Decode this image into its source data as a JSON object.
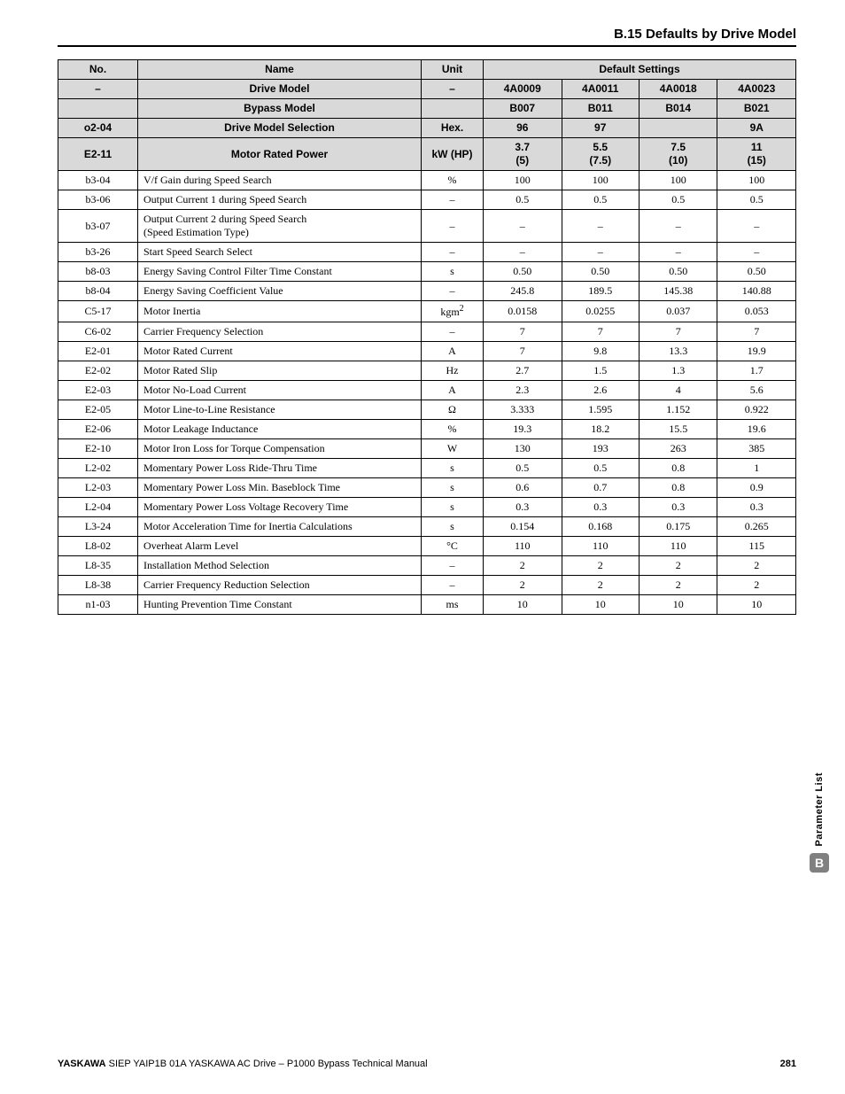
{
  "header": {
    "section_title": "B.15 Defaults by Drive Model"
  },
  "table": {
    "head": {
      "no": "No.",
      "name": "Name",
      "unit": "Unit",
      "defaults": "Default Settings",
      "dash": "–",
      "drive_model": "Drive Model",
      "bypass_model": "Bypass Model",
      "models": [
        "4A0009",
        "4A0011",
        "4A0018",
        "4A0023"
      ],
      "bypass": [
        "B007",
        "B011",
        "B014",
        "B021"
      ],
      "o2_04_no": "o2-04",
      "o2_04_name": "Drive Model Selection",
      "o2_04_unit": "Hex.",
      "o2_04_vals": [
        "96",
        "97",
        "",
        "9A"
      ],
      "e2_11_no": "E2-11",
      "e2_11_name": "Motor Rated Power",
      "e2_11_unit": "kW (HP)",
      "e2_11_vals_top": [
        "3.7",
        "5.5",
        "7.5",
        "11"
      ],
      "e2_11_vals_bot": [
        "(5)",
        "(7.5)",
        "(10)",
        "(15)"
      ]
    },
    "rows": [
      {
        "no": "b3-04",
        "name": "V/f Gain during Speed Search",
        "unit": "%",
        "v": [
          "100",
          "100",
          "100",
          "100"
        ]
      },
      {
        "no": "b3-06",
        "name": "Output Current 1 during Speed Search",
        "unit": "–",
        "v": [
          "0.5",
          "0.5",
          "0.5",
          "0.5"
        ]
      },
      {
        "no": "b3-07",
        "name": "Output Current 2 during Speed Search\n(Speed Estimation Type)",
        "unit": "–",
        "v": [
          "–",
          "–",
          "–",
          "–"
        ]
      },
      {
        "no": "b3-26",
        "name": "Start Speed Search Select",
        "unit": "–",
        "v": [
          "–",
          "–",
          "–",
          "–"
        ]
      },
      {
        "no": "b8-03",
        "name": "Energy Saving Control Filter Time Constant",
        "unit": "s",
        "v": [
          "0.50",
          "0.50",
          "0.50",
          "0.50"
        ]
      },
      {
        "no": "b8-04",
        "name": "Energy Saving Coefficient Value",
        "unit": "–",
        "v": [
          "245.8",
          "189.5",
          "145.38",
          "140.88"
        ]
      },
      {
        "no": "C5-17",
        "name": "Motor Inertia",
        "unit": "kgm²",
        "v": [
          "0.0158",
          "0.0255",
          "0.037",
          "0.053"
        ]
      },
      {
        "no": "C6-02",
        "name": "Carrier Frequency Selection",
        "unit": "–",
        "v": [
          "7",
          "7",
          "7",
          "7"
        ]
      },
      {
        "no": "E2-01",
        "name": "Motor Rated Current",
        "unit": "A",
        "v": [
          "7",
          "9.8",
          "13.3",
          "19.9"
        ]
      },
      {
        "no": "E2-02",
        "name": "Motor Rated Slip",
        "unit": "Hz",
        "v": [
          "2.7",
          "1.5",
          "1.3",
          "1.7"
        ]
      },
      {
        "no": "E2-03",
        "name": "Motor No-Load Current",
        "unit": "A",
        "v": [
          "2.3",
          "2.6",
          "4",
          "5.6"
        ]
      },
      {
        "no": "E2-05",
        "name": "Motor Line-to-Line Resistance",
        "unit": "Ω",
        "v": [
          "3.333",
          "1.595",
          "1.152",
          "0.922"
        ]
      },
      {
        "no": "E2-06",
        "name": "Motor Leakage Inductance",
        "unit": "%",
        "v": [
          "19.3",
          "18.2",
          "15.5",
          "19.6"
        ]
      },
      {
        "no": "E2-10",
        "name": "Motor Iron Loss for Torque Compensation",
        "unit": "W",
        "v": [
          "130",
          "193",
          "263",
          "385"
        ]
      },
      {
        "no": "L2-02",
        "name": "Momentary Power Loss Ride-Thru Time",
        "unit": "s",
        "v": [
          "0.5",
          "0.5",
          "0.8",
          "1"
        ]
      },
      {
        "no": "L2-03",
        "name": "Momentary Power Loss Min. Baseblock Time",
        "unit": "s",
        "v": [
          "0.6",
          "0.7",
          "0.8",
          "0.9"
        ]
      },
      {
        "no": "L2-04",
        "name": "Momentary Power Loss Voltage Recovery Time",
        "unit": "s",
        "v": [
          "0.3",
          "0.3",
          "0.3",
          "0.3"
        ]
      },
      {
        "no": "L3-24",
        "name": "Motor Acceleration Time for Inertia Calculations",
        "unit": "s",
        "v": [
          "0.154",
          "0.168",
          "0.175",
          "0.265"
        ]
      },
      {
        "no": "L8-02",
        "name": "Overheat Alarm Level",
        "unit": "°C",
        "v": [
          "110",
          "110",
          "110",
          "115"
        ]
      },
      {
        "no": "L8-35",
        "name": "Installation Method Selection",
        "unit": "–",
        "v": [
          "2",
          "2",
          "2",
          "2"
        ]
      },
      {
        "no": "L8-38",
        "name": "Carrier Frequency Reduction Selection",
        "unit": "–",
        "v": [
          "2",
          "2",
          "2",
          "2"
        ]
      },
      {
        "no": "n1-03",
        "name": "Hunting Prevention Time Constant",
        "unit": "ms",
        "v": [
          "10",
          "10",
          "10",
          "10"
        ]
      }
    ]
  },
  "side": {
    "label": "Parameter List",
    "badge": "B"
  },
  "footer": {
    "brand": "YASKAWA",
    "text": " SIEP YAIP1B 01A YASKAWA AC Drive – P1000 Bypass Technical Manual",
    "page": "281"
  }
}
